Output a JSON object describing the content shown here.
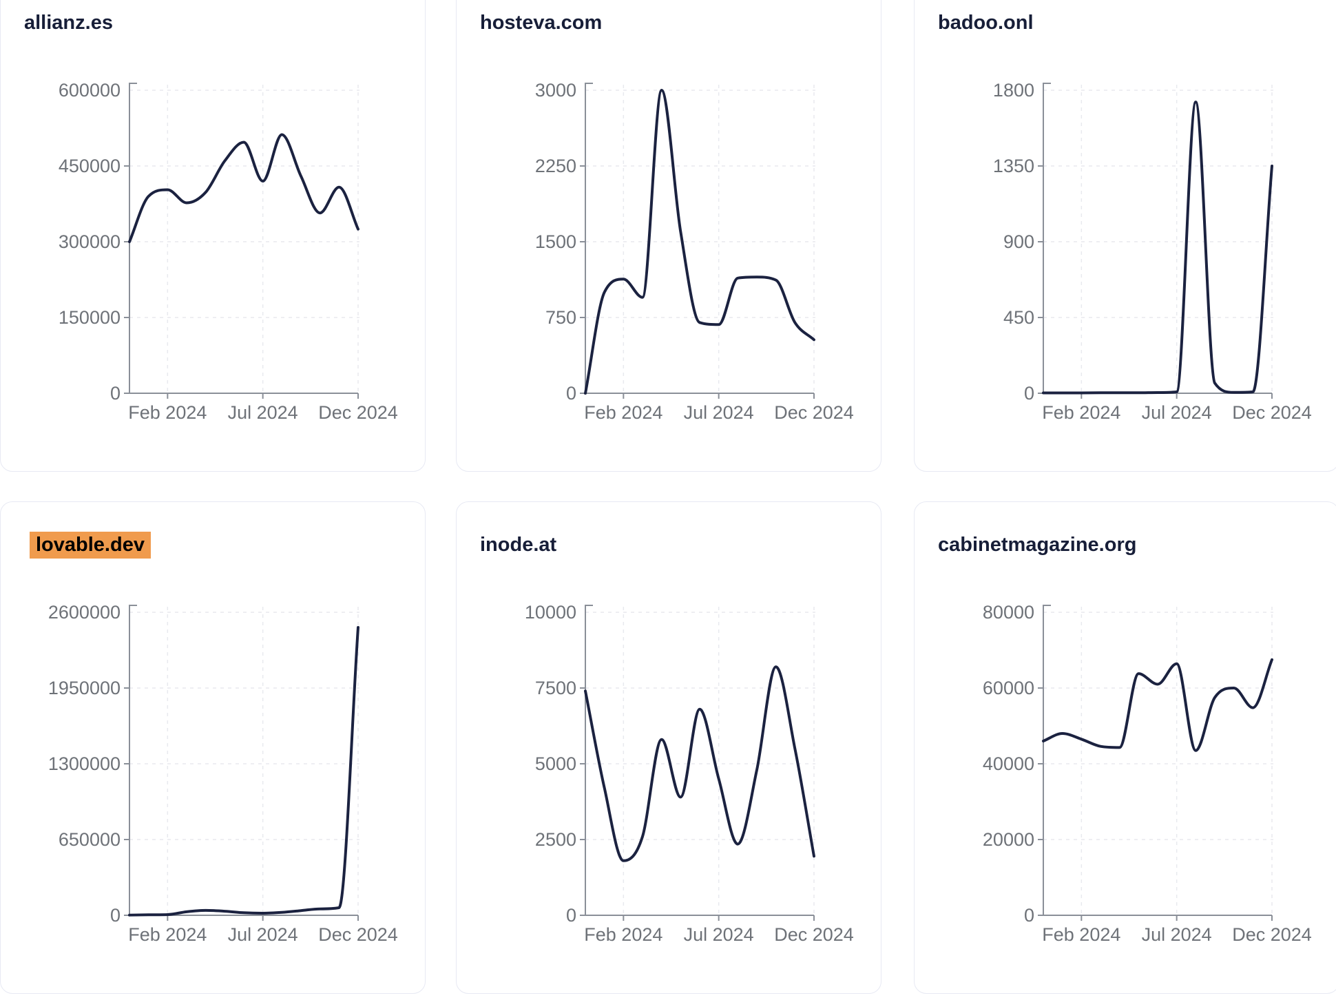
{
  "style": {
    "line_color": "#1b2240",
    "axis_color": "#8a8f98",
    "grid_color": "#e8e9ee",
    "label_color": "#6e7278",
    "title_color": "#171e38",
    "card_border_color": "#e7e9f3",
    "highlight_color": "#f09b4d",
    "background_color": "#ffffff"
  },
  "x_axis": {
    "months": [
      "Dec 2023",
      "Jan 2024",
      "Feb 2024",
      "Mar 2024",
      "Apr 2024",
      "May 2024",
      "Jun 2024",
      "Jul 2024",
      "Aug 2024",
      "Sep 2024",
      "Oct 2024",
      "Nov 2024",
      "Dec 2024"
    ],
    "tick_labels": [
      "Feb 2024",
      "Jul 2024",
      "Dec 2024"
    ],
    "tick_indices": [
      2,
      7,
      12
    ]
  },
  "chart_data": [
    {
      "type": "line",
      "title": "allianz.es",
      "highlighted": false,
      "xlabel": "",
      "ylabel": "",
      "grid": true,
      "legend": null,
      "ylim": [
        0,
        600000
      ],
      "y_ticks": [
        0,
        150000,
        300000,
        450000,
        600000
      ],
      "x_tick_labels": [
        "Feb 2024",
        "Jul 2024",
        "Dec 2024"
      ],
      "x_tick_indices": [
        2,
        7,
        12
      ],
      "x": [
        "Dec 2023",
        "Jan 2024",
        "Feb 2024",
        "Mar 2024",
        "Apr 2024",
        "May 2024",
        "Jun 2024",
        "Jul 2024",
        "Aug 2024",
        "Sep 2024",
        "Oct 2024",
        "Nov 2024",
        "Dec 2024"
      ],
      "values": [
        300000,
        390000,
        403000,
        377000,
        398000,
        460000,
        497000,
        420000,
        512000,
        430000,
        357000,
        408000,
        325000
      ]
    },
    {
      "type": "line",
      "title": "hosteva.com",
      "highlighted": false,
      "xlabel": "",
      "ylabel": "",
      "grid": true,
      "legend": null,
      "ylim": [
        0,
        3000
      ],
      "y_ticks": [
        0,
        750,
        1500,
        2250,
        3000
      ],
      "x_tick_labels": [
        "Feb 2024",
        "Jul 2024",
        "Dec 2024"
      ],
      "x_tick_indices": [
        2,
        7,
        12
      ],
      "x": [
        "Dec 2023",
        "Jan 2024",
        "Feb 2024",
        "Mar 2024",
        "Apr 2024",
        "May 2024",
        "Jun 2024",
        "Jul 2024",
        "Aug 2024",
        "Sep 2024",
        "Oct 2024",
        "Nov 2024",
        "Dec 2024"
      ],
      "values": [
        0,
        1000,
        1130,
        950,
        3000,
        1600,
        700,
        680,
        1140,
        1150,
        1120,
        700,
        530
      ]
    },
    {
      "type": "line",
      "title": "badoo.onl",
      "highlighted": false,
      "xlabel": "",
      "ylabel": "",
      "grid": true,
      "legend": null,
      "ylim": [
        0,
        1800
      ],
      "y_ticks": [
        0,
        450,
        900,
        1350,
        1800
      ],
      "x_tick_labels": [
        "Feb 2024",
        "Jul 2024",
        "Dec 2024"
      ],
      "x_tick_indices": [
        2,
        7,
        12
      ],
      "x": [
        "Dec 2023",
        "Jan 2024",
        "Feb 2024",
        "Mar 2024",
        "Apr 2024",
        "May 2024",
        "Jun 2024",
        "Jul 2024",
        "Aug 2024",
        "Sep 2024",
        "Oct 2024",
        "Nov 2024",
        "Dec 2024"
      ],
      "values": [
        2,
        2,
        2,
        3,
        3,
        3,
        4,
        8,
        1730,
        60,
        5,
        8,
        1350
      ]
    },
    {
      "type": "line",
      "title": "lovable.dev",
      "highlighted": true,
      "xlabel": "",
      "ylabel": "",
      "grid": true,
      "legend": null,
      "ylim": [
        0,
        2600000
      ],
      "y_ticks": [
        0,
        650000,
        1300000,
        1950000,
        2600000
      ],
      "x_tick_labels": [
        "Feb 2024",
        "Jul 2024",
        "Dec 2024"
      ],
      "x_tick_indices": [
        2,
        7,
        12
      ],
      "x": [
        "Dec 2023",
        "Jan 2024",
        "Feb 2024",
        "Mar 2024",
        "Apr 2024",
        "May 2024",
        "Jun 2024",
        "Jul 2024",
        "Aug 2024",
        "Sep 2024",
        "Oct 2024",
        "Nov 2024",
        "Dec 2024"
      ],
      "values": [
        2000,
        4000,
        6000,
        30000,
        42000,
        35000,
        22000,
        18000,
        25000,
        40000,
        55000,
        65000,
        2470000
      ]
    },
    {
      "type": "line",
      "title": "inode.at",
      "highlighted": false,
      "xlabel": "",
      "ylabel": "",
      "grid": true,
      "legend": null,
      "ylim": [
        0,
        10000
      ],
      "y_ticks": [
        0,
        2500,
        5000,
        7500,
        10000
      ],
      "x_tick_labels": [
        "Feb 2024",
        "Jul 2024",
        "Dec 2024"
      ],
      "x_tick_indices": [
        2,
        7,
        12
      ],
      "x": [
        "Dec 2023",
        "Jan 2024",
        "Feb 2024",
        "Mar 2024",
        "Apr 2024",
        "May 2024",
        "Jun 2024",
        "Jul 2024",
        "Aug 2024",
        "Sep 2024",
        "Oct 2024",
        "Nov 2024",
        "Dec 2024"
      ],
      "values": [
        7400,
        4200,
        1800,
        2600,
        5800,
        3900,
        6800,
        4500,
        2350,
        4800,
        8200,
        5500,
        1950
      ]
    },
    {
      "type": "line",
      "title": "cabinetmagazine.org",
      "highlighted": false,
      "xlabel": "",
      "ylabel": "",
      "grid": true,
      "legend": null,
      "ylim": [
        0,
        80000
      ],
      "y_ticks": [
        0,
        20000,
        40000,
        60000,
        80000
      ],
      "x_tick_labels": [
        "Feb 2024",
        "Jul 2024",
        "Dec 2024"
      ],
      "x_tick_indices": [
        2,
        7,
        12
      ],
      "x": [
        "Dec 2023",
        "Jan 2024",
        "Feb 2024",
        "Mar 2024",
        "Apr 2024",
        "May 2024",
        "Jun 2024",
        "Jul 2024",
        "Aug 2024",
        "Sep 2024",
        "Oct 2024",
        "Nov 2024",
        "Dec 2024"
      ],
      "values": [
        46000,
        48000,
        46500,
        44600,
        44300,
        63800,
        61000,
        66400,
        43500,
        57500,
        60000,
        54800,
        67500
      ]
    }
  ]
}
